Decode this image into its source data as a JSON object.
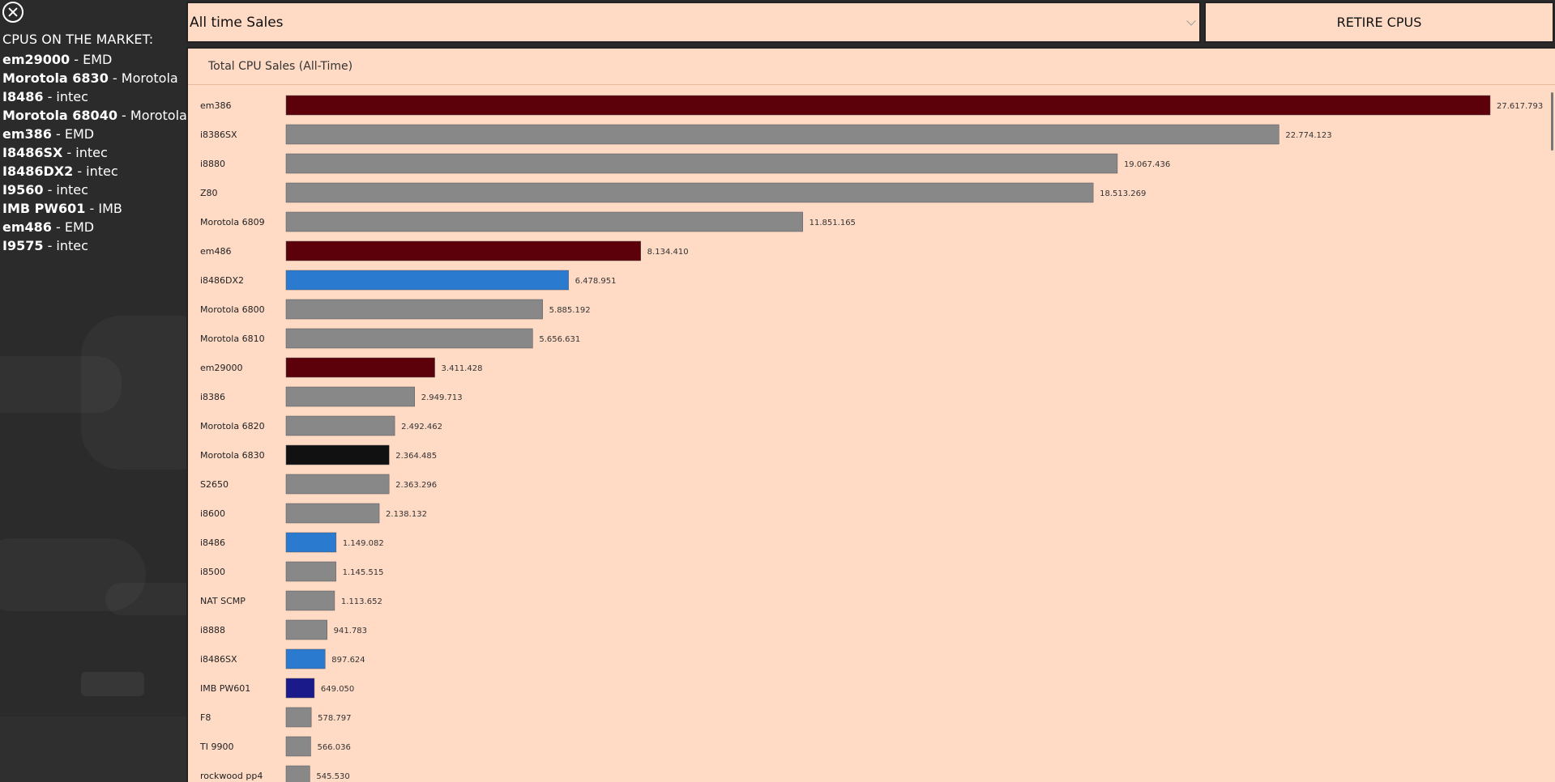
{
  "sidebar": {
    "close_icon": "close-icon",
    "title": "CPUS ON THE MARKET:",
    "items": [
      {
        "name": "em29000",
        "maker": "EMD"
      },
      {
        "name": "Morotola 6830",
        "maker": "Morotola"
      },
      {
        "name": "I8486",
        "maker": "intec"
      },
      {
        "name": "Morotola 68040",
        "maker": "Morotola"
      },
      {
        "name": "em386",
        "maker": "EMD"
      },
      {
        "name": "I8486SX",
        "maker": "intec"
      },
      {
        "name": "I8486DX2",
        "maker": "intec"
      },
      {
        "name": "I9560",
        "maker": "intec"
      },
      {
        "name": "IMB PW601",
        "maker": "IMB"
      },
      {
        "name": "em486",
        "maker": "EMD"
      },
      {
        "name": "I9575",
        "maker": "intec"
      }
    ]
  },
  "toolbar": {
    "select_value": "All time Sales",
    "retire_label": "RETIRE CPUS"
  },
  "colors": {
    "emd": "#5c0009",
    "intec": "#2a7ad0",
    "morotola": "#111111",
    "imb": "#1a1a8a",
    "other": "#888888",
    "panel_bg": "#ffdbc6"
  },
  "chart_data": {
    "type": "bar",
    "orientation": "horizontal",
    "title": "Total CPU Sales (All-Time)",
    "categories": [
      "em386",
      "i8386SX",
      "i8880",
      "Z80",
      "Morotola 6809",
      "em486",
      "i8486DX2",
      "Morotola 6800",
      "Morotola 6810",
      "em29000",
      "i8386",
      "Morotola 6820",
      "Morotola 6830",
      "S2650",
      "i8600",
      "i8486",
      "i8500",
      "NAT SCMP",
      "i8888",
      "i8486SX",
      "IMB PW601",
      "F8",
      "TI 9900",
      "rockwood pp4"
    ],
    "values": [
      27617793,
      22774123,
      19067436,
      18513269,
      11851165,
      8134410,
      6478951,
      5885192,
      5656631,
      3411428,
      2949713,
      2492462,
      2364485,
      2363296,
      2138132,
      1149082,
      1145515,
      1113652,
      941783,
      897624,
      649050,
      578797,
      566036,
      545530
    ],
    "value_labels": [
      "27.617.793",
      "22.774.123",
      "19.067.436",
      "18.513.269",
      "11.851.165",
      "8.134.410",
      "6.478.951",
      "5.885.192",
      "5.656.631",
      "3.411.428",
      "2.949.713",
      "2.492.462",
      "2.364.485",
      "2.363.296",
      "2.138.132",
      "1.149.082",
      "1.145.515",
      "1.113.652",
      "941.783",
      "897.624",
      "649.050",
      "578.797",
      "566.036",
      "545.530"
    ],
    "bar_colors": [
      "emd",
      "other",
      "other",
      "other",
      "other",
      "emd",
      "intec",
      "other",
      "other",
      "emd",
      "other",
      "other",
      "morotola",
      "other",
      "other",
      "intec",
      "other",
      "other",
      "other",
      "intec",
      "imb",
      "other",
      "other",
      "other"
    ],
    "xlim": [
      0,
      27617793
    ]
  }
}
